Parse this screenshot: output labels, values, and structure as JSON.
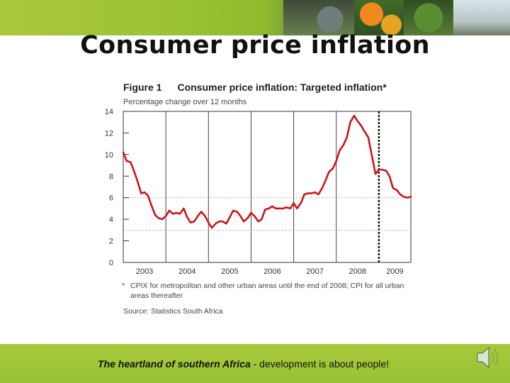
{
  "slide": {
    "title": "Consumer price inflation",
    "footer_emphasis": "The heartland of southern Africa",
    "footer_rest": " - development is about people!"
  },
  "figure": {
    "number": "Figure 1",
    "heading": "Consumer price inflation: Targeted inflation*",
    "subtitle": "Percentage change over 12 months",
    "note_marker": "*",
    "note": "CPIX for metropolitan and other urban areas until the end of 2008; CPI for all urban areas thereafter",
    "source": "Source: Statistics South Africa"
  },
  "icons": {
    "speaker": "speaker-icon"
  },
  "colors": {
    "series": "#c8161d",
    "band": "#9fc537",
    "title": "#111111"
  },
  "chart_data": {
    "type": "line",
    "title": "Consumer price inflation: Targeted inflation*",
    "subtitle": "Percentage change over 12 months",
    "ylim": [
      0,
      14
    ],
    "yticks": [
      0,
      2,
      4,
      6,
      8,
      10,
      12,
      14
    ],
    "xlim": [
      2003.0,
      2009.75
    ],
    "year_labels": [
      "2003",
      "2004",
      "2005",
      "2006",
      "2007",
      "2008",
      "2009"
    ],
    "year_dividers": [
      2004,
      2005,
      2006,
      2007,
      2008,
      2009
    ],
    "reference_lines": [
      6,
      3
    ],
    "regime_change_at": 2009.0,
    "grid": false,
    "legend": "none",
    "series": [
      {
        "x": [
          2003.0,
          2003.08,
          2003.17,
          2003.25,
          2003.33,
          2003.42,
          2003.5,
          2003.58,
          2003.67,
          2003.75,
          2003.83,
          2003.92,
          2004.0,
          2004.08,
          2004.17,
          2004.25,
          2004.33,
          2004.42,
          2004.5,
          2004.58,
          2004.67,
          2004.75,
          2004.83,
          2004.92,
          2005.0,
          2005.08,
          2005.17,
          2005.25,
          2005.33,
          2005.42,
          2005.5,
          2005.58,
          2005.67,
          2005.75,
          2005.83,
          2005.92,
          2006.0,
          2006.08,
          2006.17,
          2006.25,
          2006.33,
          2006.42,
          2006.5,
          2006.58,
          2006.67,
          2006.75,
          2006.83,
          2006.92,
          2007.0,
          2007.08,
          2007.17,
          2007.25,
          2007.33,
          2007.42,
          2007.5,
          2007.58,
          2007.67,
          2007.75,
          2007.83,
          2007.92,
          2008.0,
          2008.08,
          2008.17,
          2008.25,
          2008.33,
          2008.42,
          2008.5,
          2008.58,
          2008.67,
          2008.75,
          2008.83,
          2008.92,
          2009.0,
          2009.08,
          2009.17,
          2009.25,
          2009.33,
          2009.42,
          2009.5,
          2009.58,
          2009.67,
          2009.75
        ],
        "values": [
          10.2,
          9.4,
          9.3,
          8.5,
          7.6,
          6.4,
          6.5,
          6.2,
          5.2,
          4.4,
          4.1,
          4.0,
          4.3,
          4.8,
          4.5,
          4.6,
          4.5,
          5.0,
          4.2,
          3.7,
          3.8,
          4.3,
          4.7,
          4.3,
          3.7,
          3.2,
          3.6,
          3.8,
          3.8,
          3.6,
          4.2,
          4.8,
          4.7,
          4.3,
          3.8,
          4.1,
          4.6,
          4.3,
          3.8,
          4.0,
          4.9,
          5.0,
          5.2,
          5.0,
          5.0,
          5.0,
          5.1,
          5.0,
          5.5,
          5.0,
          5.5,
          6.3,
          6.4,
          6.4,
          6.5,
          6.3,
          6.9,
          7.6,
          8.4,
          8.7,
          9.4,
          10.4,
          10.9,
          11.6,
          13.0,
          13.6,
          13.1,
          12.7,
          12.1,
          11.6,
          10.0,
          8.2,
          8.6,
          8.6,
          8.5,
          8.0,
          6.9,
          6.7,
          6.3,
          6.1,
          6.0,
          6.1
        ]
      }
    ]
  }
}
